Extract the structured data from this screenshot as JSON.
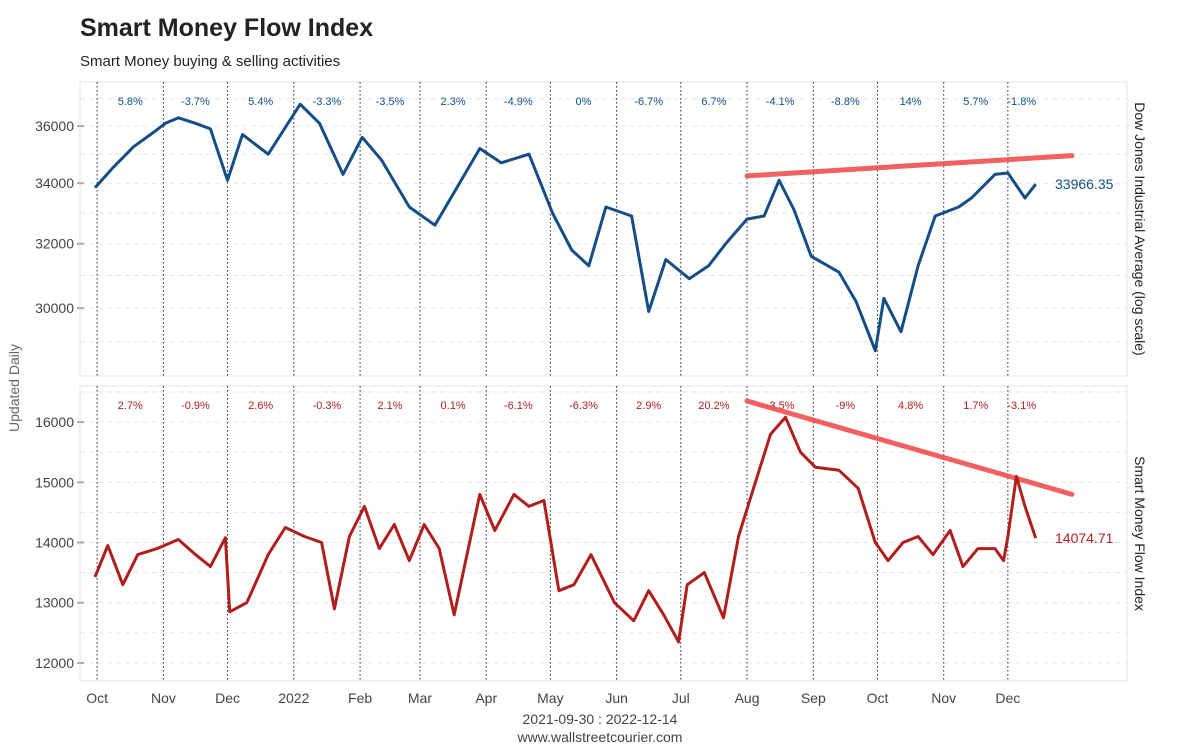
{
  "title": "Smart Money Flow Index",
  "subtitle": "Smart Money buying & selling activities",
  "side_label": "Updated Daily",
  "date_range": "2021-09-30 : 2022-12-14",
  "website": "www.wallstreetcourier.com",
  "colors": {
    "dow": "#154e85",
    "smfi": "#b01e1e",
    "trend": "#f05050"
  },
  "chart_data": {
    "type": "line",
    "x_range": [
      "2021-09-30",
      "2022-12-14"
    ],
    "x_ticks": [
      {
        "date": "2021-10-01",
        "label": "Oct"
      },
      {
        "date": "2021-11-01",
        "label": "Nov"
      },
      {
        "date": "2021-12-01",
        "label": "Dec"
      },
      {
        "date": "2022-01-01",
        "label": "2022"
      },
      {
        "date": "2022-02-01",
        "label": "Feb"
      },
      {
        "date": "2022-03-01",
        "label": "Mar"
      },
      {
        "date": "2022-04-01",
        "label": "Apr"
      },
      {
        "date": "2022-05-01",
        "label": "May"
      },
      {
        "date": "2022-06-01",
        "label": "Jun"
      },
      {
        "date": "2022-07-01",
        "label": "Jul"
      },
      {
        "date": "2022-08-01",
        "label": "Aug"
      },
      {
        "date": "2022-09-01",
        "label": "Sep"
      },
      {
        "date": "2022-10-01",
        "label": "Oct"
      },
      {
        "date": "2022-11-01",
        "label": "Nov"
      },
      {
        "date": "2022-12-01",
        "label": "Dec"
      }
    ],
    "panels": [
      {
        "name": "dow",
        "ylabel": "Dow Jones Industrial Average (log scale)",
        "scale": "log",
        "ylim": [
          28200,
          37400
        ],
        "y_ticks": [
          30000,
          32000,
          34000,
          36000
        ],
        "last_value": "33966.35",
        "monthly_changes": [
          "5.8%",
          "-3.7%",
          "5.4%",
          "-3.3%",
          "-3.5%",
          "2.3%",
          "-4.9%",
          "0%",
          "-6.7%",
          "6.7%",
          "-4.1%",
          "-8.8%",
          "14%",
          "5.7%",
          "-1.8%"
        ],
        "trendline": [
          {
            "x": "2022-08-01",
            "y": 34250
          },
          {
            "x": "2022-12-31",
            "y": 34950
          }
        ],
        "series": {
          "x": [
            "2021-09-30",
            "2021-10-08",
            "2021-10-18",
            "2021-10-26",
            "2021-11-02",
            "2021-11-08",
            "2021-11-16",
            "2021-11-23",
            "2021-12-01",
            "2021-12-08",
            "2021-12-20",
            "2022-01-04",
            "2022-01-13",
            "2022-01-24",
            "2022-02-02",
            "2022-02-11",
            "2022-02-24",
            "2022-03-08",
            "2022-03-29",
            "2022-04-08",
            "2022-04-21",
            "2022-05-02",
            "2022-05-11",
            "2022-05-19",
            "2022-05-27",
            "2022-06-08",
            "2022-06-16",
            "2022-06-24",
            "2022-07-05",
            "2022-07-14",
            "2022-07-22",
            "2022-08-01",
            "2022-08-09",
            "2022-08-16",
            "2022-08-23",
            "2022-08-31",
            "2022-09-13",
            "2022-09-21",
            "2022-09-30",
            "2022-10-04",
            "2022-10-12",
            "2022-10-20",
            "2022-10-28",
            "2022-11-08",
            "2022-11-14",
            "2022-11-25",
            "2022-12-01",
            "2022-12-09",
            "2022-12-14"
          ],
          "y": [
            33843,
            34500,
            35260,
            35700,
            36100,
            36300,
            36100,
            35900,
            34100,
            35700,
            35000,
            36800,
            36100,
            34300,
            35600,
            34800,
            33200,
            32600,
            35200,
            34700,
            35000,
            33000,
            31800,
            31300,
            33200,
            32900,
            29900,
            31500,
            30900,
            31300,
            32000,
            32800,
            32900,
            34100,
            33100,
            31600,
            31100,
            30200,
            28750,
            30300,
            29300,
            31300,
            32900,
            33200,
            33500,
            34300,
            34350,
            33500,
            33966
          ]
        }
      },
      {
        "name": "smfi",
        "ylabel": "Smart Money Flow Index",
        "scale": "linear",
        "ylim": [
          11800,
          16500
        ],
        "y_ticks": [
          12000,
          13000,
          14000,
          15000,
          16000
        ],
        "last_value": "14074.71",
        "monthly_changes": [
          "2.7%",
          "-0.9%",
          "2.6%",
          "-0.3%",
          "2.1%",
          "0.1%",
          "-6.1%",
          "-6.3%",
          "2.9%",
          "20.2%",
          "-3.5%",
          "-9%",
          "4.8%",
          "1.7%",
          "-3.1%"
        ],
        "trendline": [
          {
            "x": "2022-08-01",
            "y": 16350
          },
          {
            "x": "2022-12-31",
            "y": 14800
          }
        ],
        "series": {
          "x": [
            "2021-09-30",
            "2021-10-06",
            "2021-10-13",
            "2021-10-20",
            "2021-10-29",
            "2021-11-08",
            "2021-11-16",
            "2021-11-23",
            "2021-11-30",
            "2021-12-02",
            "2021-12-10",
            "2021-12-20",
            "2021-12-28",
            "2022-01-06",
            "2022-01-14",
            "2022-01-20",
            "2022-01-27",
            "2022-02-03",
            "2022-02-10",
            "2022-02-17",
            "2022-02-24",
            "2022-03-03",
            "2022-03-10",
            "2022-03-17",
            "2022-03-29",
            "2022-04-05",
            "2022-04-14",
            "2022-04-21",
            "2022-04-28",
            "2022-05-05",
            "2022-05-12",
            "2022-05-20",
            "2022-05-31",
            "2022-06-09",
            "2022-06-16",
            "2022-06-23",
            "2022-06-30",
            "2022-07-04",
            "2022-07-12",
            "2022-07-21",
            "2022-07-28",
            "2022-08-04",
            "2022-08-12",
            "2022-08-19",
            "2022-08-26",
            "2022-09-02",
            "2022-09-13",
            "2022-09-22",
            "2022-09-30",
            "2022-10-06",
            "2022-10-13",
            "2022-10-20",
            "2022-10-27",
            "2022-11-04",
            "2022-11-10",
            "2022-11-17",
            "2022-11-25",
            "2022-11-29",
            "2022-12-01",
            "2022-12-05",
            "2022-12-09",
            "2022-12-14"
          ],
          "y": [
            13430,
            13950,
            13300,
            13800,
            13900,
            14050,
            13800,
            13600,
            14080,
            12850,
            13000,
            13800,
            14250,
            14100,
            14000,
            12900,
            14100,
            14600,
            13900,
            14300,
            13700,
            14300,
            13900,
            12800,
            14800,
            14200,
            14800,
            14600,
            14700,
            13200,
            13300,
            13800,
            13000,
            12700,
            13200,
            12800,
            12350,
            13300,
            13500,
            12750,
            14100,
            14900,
            15800,
            16080,
            15500,
            15250,
            15200,
            14900,
            14000,
            13700,
            14000,
            14100,
            13800,
            14200,
            13600,
            13900,
            13900,
            13700,
            14100,
            15100,
            14600,
            14074
          ]
        }
      }
    ]
  }
}
